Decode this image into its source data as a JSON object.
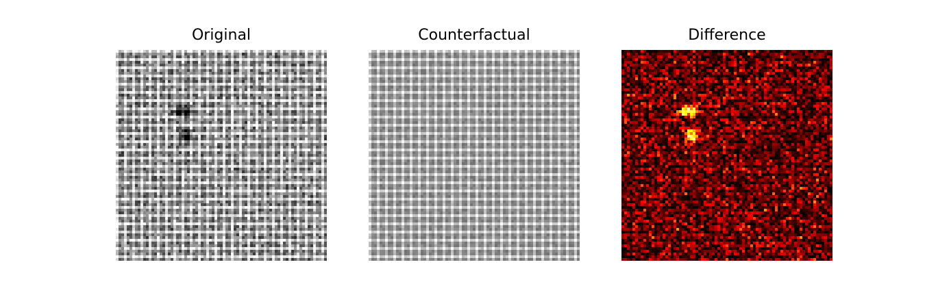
{
  "panels": [
    {
      "title": "Original",
      "colormap": "gray",
      "image": "fabric-texture-with-dark-defect"
    },
    {
      "title": "Counterfactual",
      "colormap": "gray",
      "image": "fabric-texture-defect-removed"
    },
    {
      "title": "Difference",
      "colormap": "hot",
      "image": "absolute-difference-heatmap"
    }
  ]
}
